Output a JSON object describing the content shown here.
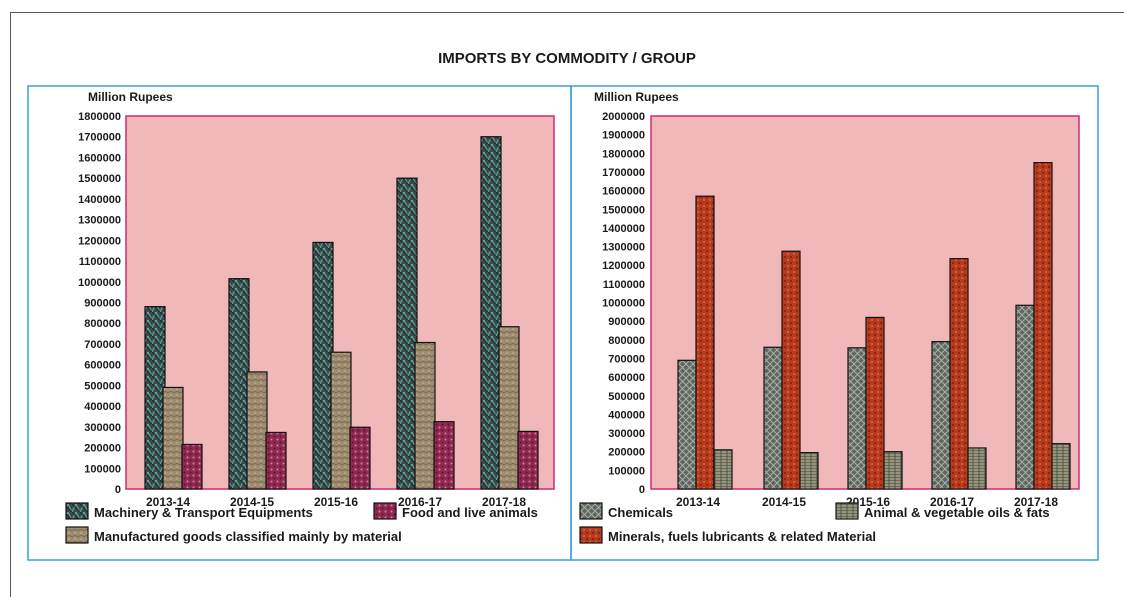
{
  "title": "IMPORTS BY COMMODITY / GROUP",
  "chart_data": [
    {
      "type": "bar",
      "ylabel": "Million Rupees",
      "categories": [
        "2013-14",
        "2014-15",
        "2015-16",
        "2016-17",
        "2017-18"
      ],
      "ylim": [
        0,
        1800000
      ],
      "ytick_step": 100000,
      "series": [
        {
          "name": "Machinery & Transport Equipments",
          "color": "#3d4a4a",
          "values": [
            880000,
            1015000,
            1190000,
            1500000,
            1700000
          ]
        },
        {
          "name": "Manufactured goods classified mainly by material",
          "color": "#a08d72",
          "values": [
            490000,
            565000,
            660000,
            707000,
            783000
          ]
        },
        {
          "name": "Food and live animals",
          "color": "#8e2a52",
          "values": [
            215000,
            273000,
            298000,
            325000,
            278000
          ]
        }
      ],
      "plot_background": "#f0b8b8",
      "plot_border": "#d0287a"
    },
    {
      "type": "bar",
      "ylabel": "Million Rupees",
      "categories": [
        "2013-14",
        "2014-15",
        "2015-16",
        "2016-17",
        "2017-18"
      ],
      "ylim": [
        0,
        2000000
      ],
      "ytick_step": 100000,
      "series": [
        {
          "name": "Chemicals",
          "color": "#5f6660",
          "values": [
            690000,
            760000,
            757000,
            790000,
            985000
          ]
        },
        {
          "name": "Minerals, fuels lubricants & related Material",
          "color": "#b53a1e",
          "values": [
            1570000,
            1275000,
            920000,
            1235000,
            1750000
          ]
        },
        {
          "name": "Animal & vegetable oils & fats",
          "color": "#6a6e5c",
          "values": [
            210000,
            195000,
            200000,
            220000,
            243000
          ]
        }
      ],
      "plot_background": "#f0b8b8",
      "plot_border": "#d0287a"
    }
  ]
}
